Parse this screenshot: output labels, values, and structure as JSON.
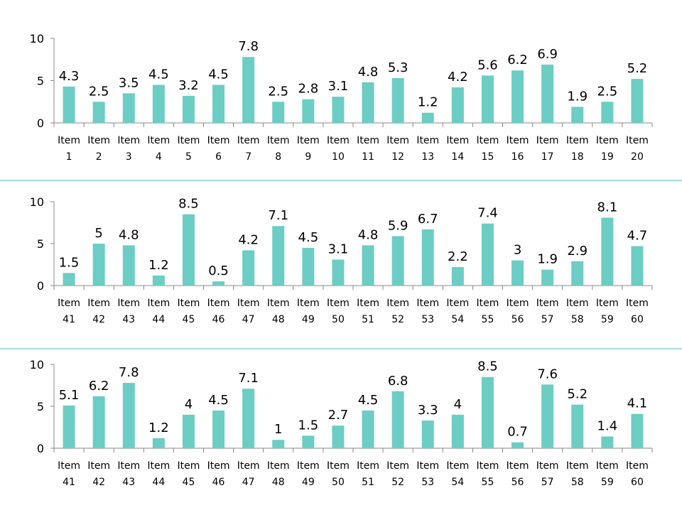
{
  "colors": {
    "bar": "#6ccdc4",
    "axis": "#888888",
    "separator": "#4bb8b8",
    "text": "#000000"
  },
  "chart_data": [
    {
      "type": "bar",
      "ylim": [
        0,
        10
      ],
      "yticks": [
        0,
        5,
        10
      ],
      "grid": false,
      "categories": [
        [
          "Item",
          "1"
        ],
        [
          "Item",
          "2"
        ],
        [
          "Item",
          "3"
        ],
        [
          "Item",
          "4"
        ],
        [
          "Item",
          "5"
        ],
        [
          "Item",
          "6"
        ],
        [
          "Item",
          "7"
        ],
        [
          "Item",
          "8"
        ],
        [
          "Item",
          "9"
        ],
        [
          "Item",
          "10"
        ],
        [
          "Item",
          "11"
        ],
        [
          "Item",
          "12"
        ],
        [
          "Item",
          "13"
        ],
        [
          "Item",
          "14"
        ],
        [
          "Item",
          "15"
        ],
        [
          "Item",
          "16"
        ],
        [
          "Item",
          "17"
        ],
        [
          "Item",
          "18"
        ],
        [
          "Item",
          "19"
        ],
        [
          "Item",
          "20"
        ]
      ],
      "values": [
        4.3,
        2.5,
        3.5,
        4.5,
        3.2,
        4.5,
        7.8,
        2.5,
        2.8,
        3.1,
        4.8,
        5.3,
        1.2,
        4.2,
        5.6,
        6.2,
        6.9,
        1.9,
        2.5,
        5.2
      ]
    },
    {
      "type": "bar",
      "ylim": [
        0,
        10
      ],
      "yticks": [
        0,
        5,
        10
      ],
      "grid": false,
      "categories": [
        [
          "Item",
          "41"
        ],
        [
          "Item",
          "42"
        ],
        [
          "Item",
          "43"
        ],
        [
          "Item",
          "44"
        ],
        [
          "Item",
          "45"
        ],
        [
          "Item",
          "46"
        ],
        [
          "Item",
          "47"
        ],
        [
          "Item",
          "48"
        ],
        [
          "Item",
          "49"
        ],
        [
          "Item",
          "50"
        ],
        [
          "Item",
          "51"
        ],
        [
          "Item",
          "52"
        ],
        [
          "Item",
          "53"
        ],
        [
          "Item",
          "54"
        ],
        [
          "Item",
          "55"
        ],
        [
          "Item",
          "56"
        ],
        [
          "Item",
          "57"
        ],
        [
          "Item",
          "58"
        ],
        [
          "Item",
          "59"
        ],
        [
          "Item",
          "60"
        ]
      ],
      "values": [
        1.5,
        5,
        4.8,
        1.2,
        8.5,
        0.5,
        4.2,
        7.1,
        4.5,
        3.1,
        4.8,
        5.9,
        6.7,
        2.2,
        7.4,
        3,
        1.9,
        2.9,
        8.1,
        4.7
      ]
    },
    {
      "type": "bar",
      "ylim": [
        0,
        10
      ],
      "yticks": [
        0,
        5,
        10
      ],
      "grid": false,
      "categories": [
        [
          "Item",
          "41"
        ],
        [
          "Item",
          "42"
        ],
        [
          "Item",
          "43"
        ],
        [
          "Item",
          "44"
        ],
        [
          "Item",
          "45"
        ],
        [
          "Item",
          "46"
        ],
        [
          "Item",
          "47"
        ],
        [
          "Item",
          "48"
        ],
        [
          "Item",
          "49"
        ],
        [
          "Item",
          "50"
        ],
        [
          "Item",
          "51"
        ],
        [
          "Item",
          "52"
        ],
        [
          "Item",
          "53"
        ],
        [
          "Item",
          "54"
        ],
        [
          "Item",
          "55"
        ],
        [
          "Item",
          "56"
        ],
        [
          "Item",
          "57"
        ],
        [
          "Item",
          "58"
        ],
        [
          "Item",
          "59"
        ],
        [
          "Item",
          "60"
        ]
      ],
      "values": [
        5.1,
        6.2,
        7.8,
        1.2,
        4,
        4.5,
        7.1,
        1,
        1.5,
        2.7,
        4.5,
        6.8,
        3.3,
        4,
        8.5,
        0.7,
        7.6,
        5.2,
        1.4,
        4.1
      ]
    }
  ]
}
